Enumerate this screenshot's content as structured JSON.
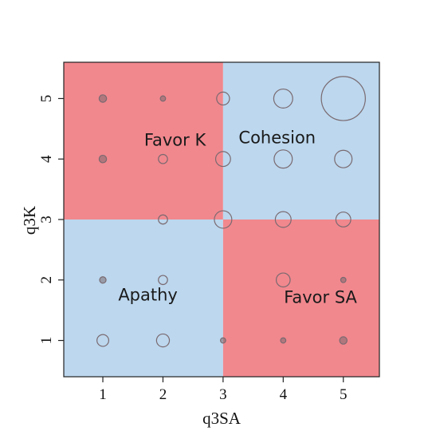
{
  "chart_data": {
    "type": "scatter",
    "xlabel": "q3SA",
    "ylabel": "q3K",
    "xlim": [
      0.35,
      5.6
    ],
    "ylim": [
      0.4,
      5.6
    ],
    "x_ticks": [
      "1",
      "2",
      "3",
      "4",
      "5"
    ],
    "y_ticks": [
      "1",
      "2",
      "3",
      "4",
      "5"
    ],
    "grid": false,
    "legend": "none",
    "regions": [
      {
        "label": "Favor K",
        "x": [
          0.35,
          3.0
        ],
        "y": [
          3.0,
          5.6
        ],
        "color": "#f1888e",
        "label_at": [
          2.2,
          4.22
        ]
      },
      {
        "label": "Cohesion",
        "x": [
          3.0,
          5.6
        ],
        "y": [
          3.0,
          5.6
        ],
        "color": "#bcd7ee",
        "label_at": [
          3.9,
          4.26
        ]
      },
      {
        "label": "Apathy",
        "x": [
          0.35,
          3.0
        ],
        "y": [
          0.4,
          3.0
        ],
        "color": "#bcd7ee",
        "label_at": [
          1.75,
          1.66
        ]
      },
      {
        "label": "Favor SA",
        "x": [
          3.0,
          5.6
        ],
        "y": [
          0.4,
          3.0
        ],
        "color": "#f1888e",
        "label_at": [
          4.62,
          1.62
        ]
      }
    ],
    "bubble_scale": "relative_count",
    "points": [
      {
        "x": 1,
        "y": 5,
        "size": 2
      },
      {
        "x": 2,
        "y": 5,
        "size": 1
      },
      {
        "x": 3,
        "y": 5,
        "size": 6
      },
      {
        "x": 4,
        "y": 5,
        "size": 13
      },
      {
        "x": 5,
        "y": 5,
        "size": 70
      },
      {
        "x": 1,
        "y": 4,
        "size": 2
      },
      {
        "x": 2,
        "y": 4,
        "size": 3
      },
      {
        "x": 3,
        "y": 4,
        "size": 8
      },
      {
        "x": 4,
        "y": 4,
        "size": 12
      },
      {
        "x": 5,
        "y": 4,
        "size": 11
      },
      {
        "x": 2,
        "y": 3,
        "size": 3
      },
      {
        "x": 3,
        "y": 3,
        "size": 11
      },
      {
        "x": 4,
        "y": 3,
        "size": 9
      },
      {
        "x": 5,
        "y": 3,
        "size": 8
      },
      {
        "x": 1,
        "y": 2,
        "size": 1.5
      },
      {
        "x": 2,
        "y": 2,
        "size": 3
      },
      {
        "x": 4,
        "y": 2,
        "size": 7
      },
      {
        "x": 5,
        "y": 2,
        "size": 1
      },
      {
        "x": 1,
        "y": 1,
        "size": 5
      },
      {
        "x": 2,
        "y": 1,
        "size": 6
      },
      {
        "x": 3,
        "y": 1,
        "size": 1
      },
      {
        "x": 4,
        "y": 1,
        "size": 1
      },
      {
        "x": 5,
        "y": 1,
        "size": 2
      }
    ],
    "colors": {
      "red_region": "#f1888e",
      "blue_region": "#bcd7ee",
      "marker_stroke": "#7a6a70",
      "axis": "#222222"
    }
  }
}
